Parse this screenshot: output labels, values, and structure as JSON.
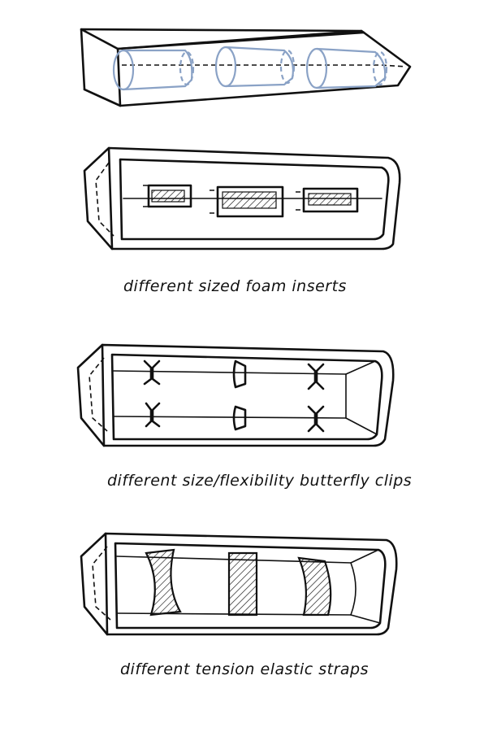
{
  "captions": {
    "foam": "different sized foam inserts",
    "clips": "different size/flexibility butterfly clips",
    "straps": "different tension elastic straps"
  },
  "colors": {
    "ink": "#111111",
    "pencil_blue": "#8aa2c6",
    "background": "#ffffff"
  }
}
